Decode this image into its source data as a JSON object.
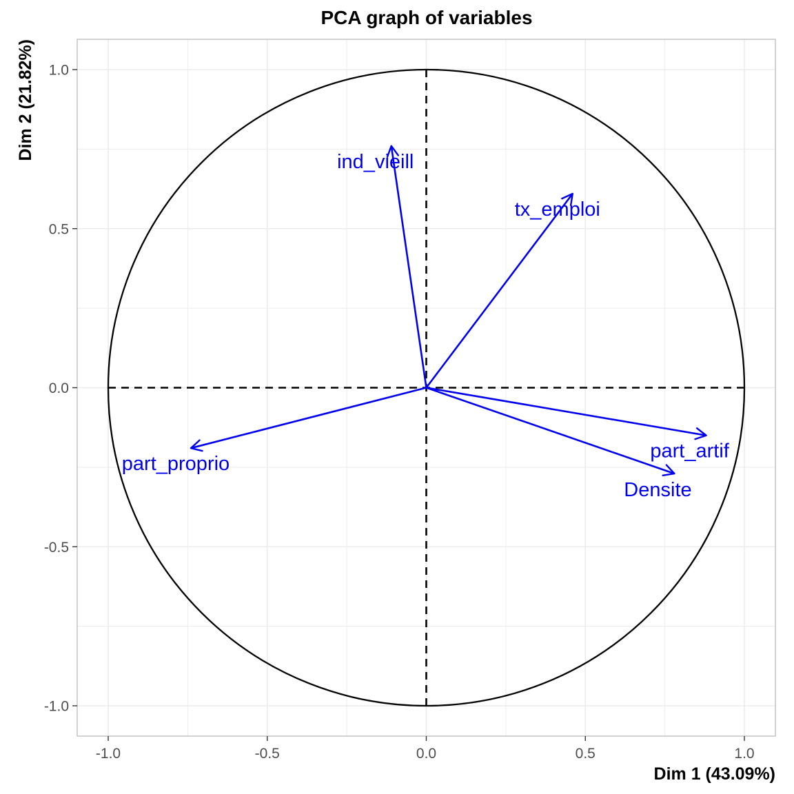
{
  "chart_data": {
    "type": "scatter",
    "title": "PCA graph of variables",
    "xlabel": "Dim 1 (43.09%)",
    "ylabel": "Dim 2 (21.82%)",
    "xlim": [
      -1.1,
      1.1
    ],
    "ylim": [
      -1.1,
      1.1
    ],
    "xticks": [
      -1.0,
      -0.5,
      0.0,
      0.5,
      1.0
    ],
    "yticks": [
      -1.0,
      -0.5,
      0.0,
      0.5,
      1.0
    ],
    "xtick_labels": [
      "-1.0",
      "-0.5",
      "0.0",
      "0.5",
      "1.0"
    ],
    "ytick_labels": [
      "-1.0",
      "-0.5",
      "0.0",
      "0.5",
      "1.0"
    ],
    "grid": true,
    "unit_circle": true,
    "variables": [
      {
        "name": "ind_vieill",
        "x": -0.11,
        "y": 0.76
      },
      {
        "name": "tx_emploi",
        "x": 0.46,
        "y": 0.61
      },
      {
        "name": "part_artif",
        "x": 0.88,
        "y": -0.15
      },
      {
        "name": "Densite",
        "x": 0.78,
        "y": -0.27
      },
      {
        "name": "part_proprio",
        "x": -0.74,
        "y": -0.19
      }
    ],
    "arrow_color": "#0000EE",
    "circle_color": "#000000",
    "grid_color": "#EBEBEB",
    "panel_border_color": "#BFBFBF"
  }
}
